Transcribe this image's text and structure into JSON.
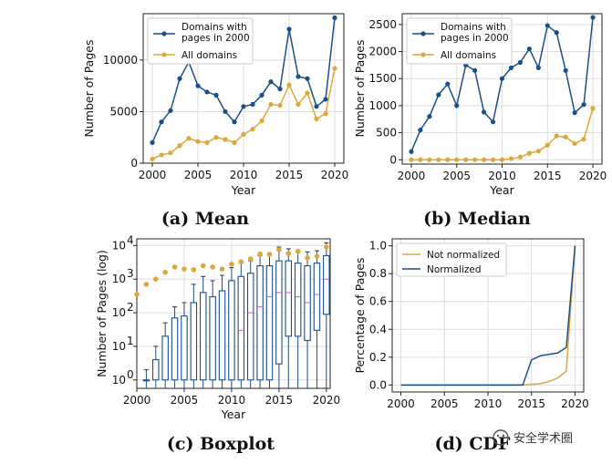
{
  "colors": {
    "blue": "#1a4f8a",
    "orange": "#dca83a",
    "grid": "#dddddd",
    "median": "#c060c0"
  },
  "watermark": {
    "text": "安全学术圈",
    "icon": "wechat-icon"
  },
  "chart_data": [
    {
      "id": "a",
      "type": "line",
      "caption": "(a) Mean",
      "xlabel": "Year",
      "ylabel": "Number of Pages",
      "xlim": [
        1999,
        2021
      ],
      "ylim": [
        0,
        14500
      ],
      "xticks": [
        2000,
        2005,
        2010,
        2015,
        2020
      ],
      "yticks": [
        0,
        5000,
        10000
      ],
      "grid": true,
      "legend_position": "top-left",
      "x": [
        2000,
        2001,
        2002,
        2003,
        2004,
        2005,
        2006,
        2007,
        2008,
        2009,
        2010,
        2011,
        2012,
        2013,
        2014,
        2015,
        2016,
        2017,
        2018,
        2019,
        2020
      ],
      "series": [
        {
          "name": "Domains with\npages in 2000",
          "color": "#1a4f8a",
          "values": [
            2000,
            4000,
            5100,
            8200,
            9800,
            7500,
            6900,
            6600,
            5000,
            4000,
            5500,
            5700,
            6600,
            7900,
            7200,
            13000,
            8400,
            8200,
            5500,
            6200,
            14100
          ]
        },
        {
          "name": "All domains",
          "color": "#dca83a",
          "values": [
            400,
            800,
            1000,
            1700,
            2400,
            2100,
            2000,
            2500,
            2300,
            2000,
            2800,
            3300,
            4100,
            5700,
            5600,
            7600,
            5700,
            6800,
            4300,
            4800,
            9200
          ]
        }
      ]
    },
    {
      "id": "b",
      "type": "line",
      "caption": "(b) Median",
      "xlabel": "Year",
      "ylabel": "Number of Pages",
      "xlim": [
        1999,
        2021
      ],
      "ylim": [
        -80,
        2700
      ],
      "xticks": [
        2000,
        2005,
        2010,
        2015,
        2020
      ],
      "yticks": [
        0,
        500,
        1000,
        1500,
        2000,
        2500
      ],
      "grid": true,
      "legend_position": "top-left",
      "x": [
        2000,
        2001,
        2002,
        2003,
        2004,
        2005,
        2006,
        2007,
        2008,
        2009,
        2010,
        2011,
        2012,
        2013,
        2014,
        2015,
        2016,
        2017,
        2018,
        2019,
        2020
      ],
      "series": [
        {
          "name": "Domains with\npages in 2000",
          "color": "#1a4f8a",
          "values": [
            150,
            550,
            800,
            1200,
            1400,
            1000,
            1750,
            1650,
            880,
            700,
            1500,
            1700,
            1800,
            2050,
            1700,
            2480,
            2350,
            1650,
            870,
            1020,
            2630
          ]
        },
        {
          "name": "All domains",
          "color": "#dca83a",
          "values": [
            0,
            0,
            0,
            0,
            0,
            0,
            0,
            0,
            0,
            0,
            0,
            20,
            50,
            120,
            160,
            270,
            440,
            420,
            300,
            380,
            950
          ]
        }
      ]
    },
    {
      "id": "c",
      "type": "boxplot",
      "caption": "(c) Boxplot",
      "xlabel": "Year",
      "ylabel": "Number of Pages (log)",
      "scale": "log",
      "xlim": [
        2000,
        2020.4
      ],
      "ylim_log10": [
        -0.25,
        4.2
      ],
      "xticks": [
        2000,
        2005,
        2010,
        2015,
        2020
      ],
      "yticks": [
        {
          "base": "10",
          "exp": "0"
        },
        {
          "base": "10",
          "exp": "1"
        },
        {
          "base": "10",
          "exp": "2"
        },
        {
          "base": "10",
          "exp": "3"
        },
        {
          "base": "10",
          "exp": "4"
        }
      ],
      "grid": true,
      "boxes": [
        {
          "x": 2001,
          "q1": 1,
          "q3": 1,
          "whisker": 2,
          "median": 1
        },
        {
          "x": 2002,
          "q1": 1,
          "q3": 4,
          "whisker": 10,
          "median": 1
        },
        {
          "x": 2003,
          "q1": 1,
          "q3": 20,
          "whisker": 50,
          "median": 1
        },
        {
          "x": 2004,
          "q1": 1,
          "q3": 70,
          "whisker": 150,
          "median": 1
        },
        {
          "x": 2005,
          "q1": 1,
          "q3": 80,
          "whisker": 200,
          "median": 1
        },
        {
          "x": 2006,
          "q1": 1,
          "q3": 200,
          "whisker": 700,
          "median": 1
        },
        {
          "x": 2007,
          "q1": 1,
          "q3": 400,
          "whisker": 1200,
          "median": 1
        },
        {
          "x": 2008,
          "q1": 1,
          "q3": 300,
          "whisker": 900,
          "median": 1
        },
        {
          "x": 2009,
          "q1": 1,
          "q3": 450,
          "whisker": 1300,
          "median": 1
        },
        {
          "x": 2010,
          "q1": 1,
          "q3": 900,
          "whisker": 2200,
          "median": 1
        },
        {
          "x": 2011,
          "q1": 1,
          "q3": 1200,
          "whisker": 3000,
          "median": 30
        },
        {
          "x": 2012,
          "q1": 1,
          "q3": 1500,
          "whisker": 3500,
          "median": 100
        },
        {
          "x": 2013,
          "q1": 1,
          "q3": 2500,
          "whisker": 5000,
          "median": 150
        },
        {
          "x": 2014,
          "q1": 1,
          "q3": 2500,
          "whisker": 5500,
          "median": 300
        },
        {
          "x": 2015,
          "q1": 3,
          "q3": 3500,
          "whisker": 9000,
          "median": 400
        },
        {
          "x": 2016,
          "q1": 20,
          "q3": 3500,
          "whisker": 8000,
          "median": 400
        },
        {
          "x": 2017,
          "q1": 20,
          "q3": 3000,
          "whisker": 7000,
          "median": 300
        },
        {
          "x": 2018,
          "q1": 15,
          "q3": 2500,
          "whisker": 6500,
          "median": 200
        },
        {
          "x": 2019,
          "q1": 30,
          "q3": 3000,
          "whisker": 7000,
          "median": 350
        },
        {
          "x": 2020,
          "q1": 90,
          "q3": 5000,
          "whisker": 12000,
          "median": 1000
        }
      ],
      "means": {
        "x": [
          2000,
          2001,
          2002,
          2003,
          2004,
          2005,
          2006,
          2007,
          2008,
          2009,
          2010,
          2011,
          2012,
          2013,
          2014,
          2015,
          2016,
          2017,
          2018,
          2019,
          2020
        ],
        "values": [
          350,
          700,
          1000,
          1600,
          2300,
          2000,
          1900,
          2500,
          2300,
          2000,
          2800,
          3300,
          4000,
          5600,
          5500,
          7500,
          5800,
          6700,
          4300,
          4800,
          9000
        ]
      }
    },
    {
      "id": "d",
      "type": "line",
      "caption": "(d) CDF",
      "xlabel": "",
      "ylabel": "Percentage of Pages",
      "xlim": [
        1999,
        2021
      ],
      "ylim": [
        -0.05,
        1.05
      ],
      "xticks": [
        2000,
        2005,
        2010,
        2015,
        2020
      ],
      "yticks": [
        "0.0",
        "0.2",
        "0.4",
        "0.6",
        "0.8",
        "1.0"
      ],
      "grid": true,
      "legend_position": "top-left",
      "x": [
        2000,
        2001,
        2002,
        2003,
        2004,
        2005,
        2006,
        2007,
        2008,
        2009,
        2010,
        2011,
        2012,
        2013,
        2014,
        2015,
        2016,
        2017,
        2018,
        2019,
        2020
      ],
      "series": [
        {
          "name": "Not normalized",
          "color": "#dca83a",
          "values": [
            0,
            0,
            0,
            0,
            0,
            0,
            0,
            0,
            0,
            0,
            0,
            0,
            0,
            0,
            0,
            0.005,
            0.01,
            0.025,
            0.05,
            0.1,
            1.0
          ]
        },
        {
          "name": "Normalized",
          "color": "#1a4f8a",
          "values": [
            0,
            0,
            0,
            0,
            0,
            0,
            0,
            0,
            0,
            0,
            0,
            0,
            0,
            0,
            0,
            0.18,
            0.21,
            0.22,
            0.23,
            0.27,
            1.0
          ]
        }
      ]
    }
  ]
}
